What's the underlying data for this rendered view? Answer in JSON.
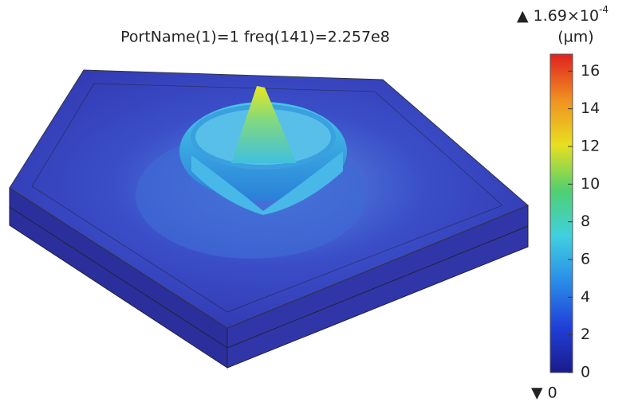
{
  "chart_data": {
    "type": "surface",
    "title": "PortName(1)=1 freq(141)=2.257e8",
    "colorbar": {
      "max_label": {
        "mantissa": "▲ 1.69×10",
        "exponent": "-4"
      },
      "unit": "(µm)",
      "min_label": "▼ 0",
      "clim": [
        0,
        16.9
      ],
      "ticks": [
        0,
        2,
        4,
        6,
        8,
        10,
        12,
        14,
        16
      ],
      "colors": [
        "#1a1a8c",
        "#2040d8",
        "#2a8ce8",
        "#40d0e0",
        "#50d070",
        "#e8e020",
        "#f09020",
        "#e02020"
      ]
    }
  }
}
